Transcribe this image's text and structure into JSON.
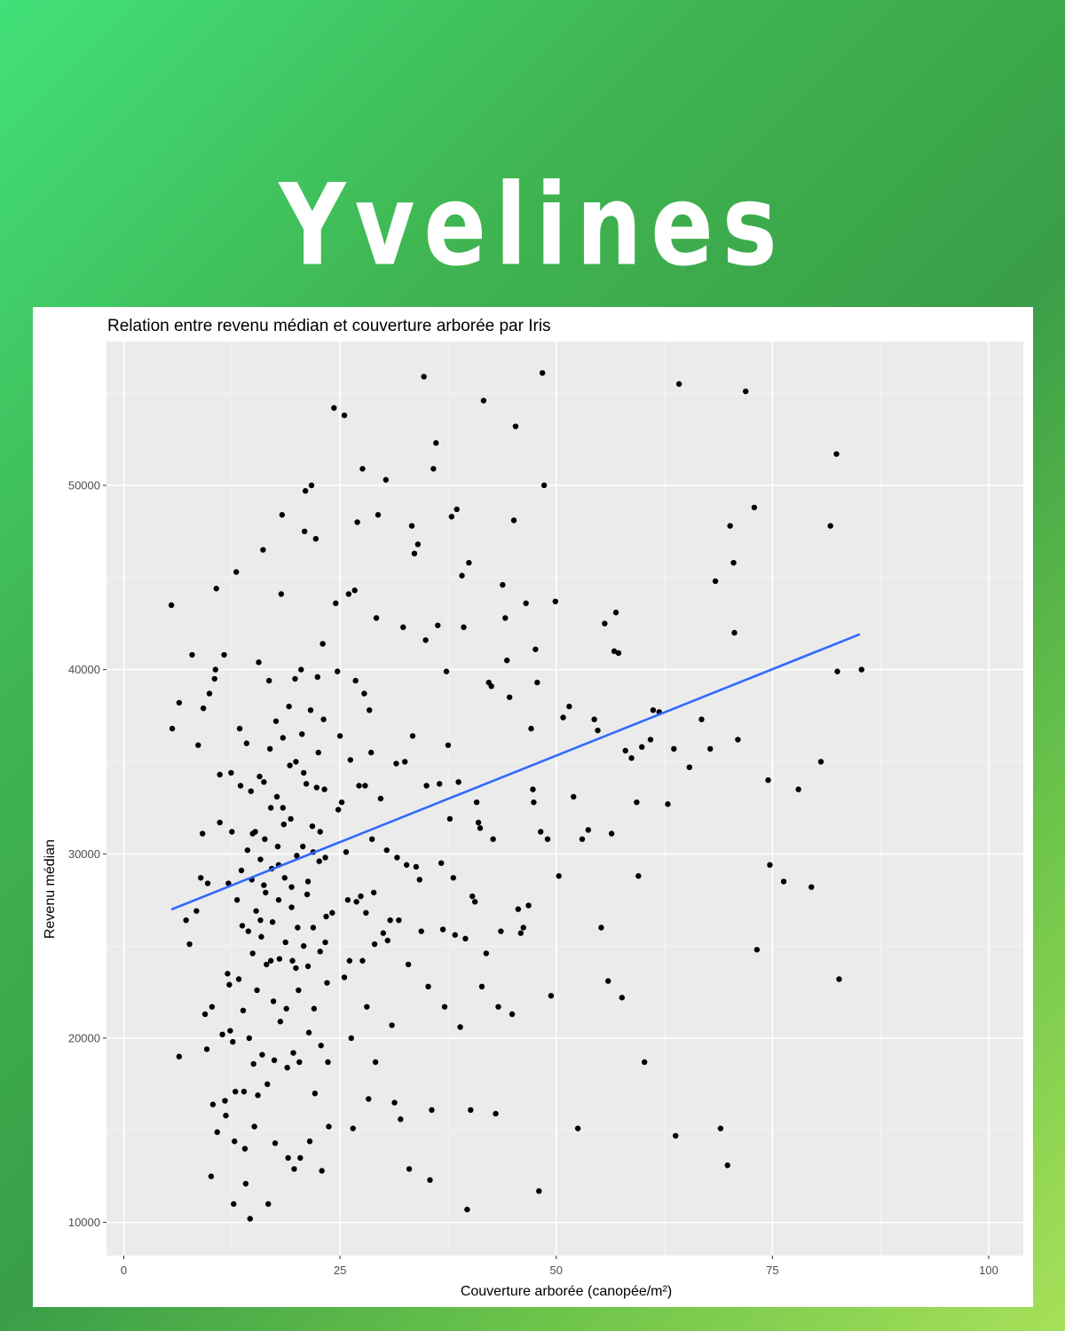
{
  "headline": "Yvelines",
  "chart_data": {
    "type": "scatter",
    "title": "Relation entre revenu médian et couverture arborée par Iris",
    "xlabel": "Couverture arborée (canopée/m²)",
    "ylabel": "Revenu médian",
    "xlim": [
      -2,
      104
    ],
    "ylim": [
      8200,
      57800
    ],
    "xticks": [
      0,
      25,
      50,
      75,
      100
    ],
    "yticks": [
      10000,
      20000,
      30000,
      40000,
      50000
    ],
    "grid": true,
    "panel_color": "#ebebeb",
    "point_color": "#000000",
    "trend_color": "#3366ff",
    "trend_line": {
      "x": [
        5.6,
        85
      ],
      "y": [
        27000,
        41900
      ]
    },
    "points": [
      [
        5.5,
        43500
      ],
      [
        5.6,
        36800
      ],
      [
        6.4,
        38200
      ],
      [
        7.2,
        26400
      ],
      [
        7.6,
        25100
      ],
      [
        6.4,
        19000
      ],
      [
        7.9,
        40800
      ],
      [
        8.4,
        26900
      ],
      [
        8.6,
        35900
      ],
      [
        8.9,
        28700
      ],
      [
        9.1,
        31100
      ],
      [
        9.2,
        37900
      ],
      [
        9.4,
        21300
      ],
      [
        9.6,
        19400
      ],
      [
        9.7,
        28400
      ],
      [
        9.9,
        38700
      ],
      [
        10.1,
        12500
      ],
      [
        10.2,
        21700
      ],
      [
        10.3,
        16400
      ],
      [
        10.5,
        39500
      ],
      [
        10.6,
        40000
      ],
      [
        10.7,
        44400
      ],
      [
        10.8,
        14900
      ],
      [
        11.1,
        34300
      ],
      [
        11.1,
        31700
      ],
      [
        11.4,
        20200
      ],
      [
        11.6,
        40800
      ],
      [
        11.7,
        16600
      ],
      [
        11.8,
        15800
      ],
      [
        12.0,
        23500
      ],
      [
        12.1,
        28400
      ],
      [
        12.2,
        22900
      ],
      [
        12.3,
        20400
      ],
      [
        12.4,
        34400
      ],
      [
        12.5,
        31200
      ],
      [
        12.6,
        19800
      ],
      [
        12.7,
        11000
      ],
      [
        12.8,
        14400
      ],
      [
        12.9,
        17100
      ],
      [
        13.0,
        45300
      ],
      [
        13.1,
        27500
      ],
      [
        13.3,
        23200
      ],
      [
        13.4,
        36800
      ],
      [
        13.5,
        33700
      ],
      [
        13.6,
        29100
      ],
      [
        13.7,
        26100
      ],
      [
        13.8,
        21500
      ],
      [
        13.9,
        17100
      ],
      [
        14.0,
        14000
      ],
      [
        14.1,
        12100
      ],
      [
        14.2,
        36000
      ],
      [
        14.3,
        30200
      ],
      [
        14.4,
        25800
      ],
      [
        14.5,
        20000
      ],
      [
        14.6,
        10200
      ],
      [
        14.7,
        33400
      ],
      [
        14.8,
        28600
      ],
      [
        14.9,
        24600
      ],
      [
        15.0,
        18600
      ],
      [
        15.1,
        15200
      ],
      [
        15.2,
        31200
      ],
      [
        15.3,
        26900
      ],
      [
        15.4,
        22600
      ],
      [
        15.5,
        16900
      ],
      [
        15.6,
        40400
      ],
      [
        15.7,
        34200
      ],
      [
        15.8,
        29700
      ],
      [
        15.9,
        25500
      ],
      [
        16.0,
        19100
      ],
      [
        16.1,
        46500
      ],
      [
        16.2,
        33900
      ],
      [
        16.3,
        30800
      ],
      [
        16.4,
        27900
      ],
      [
        16.5,
        24000
      ],
      [
        16.6,
        17500
      ],
      [
        16.7,
        11000
      ],
      [
        16.8,
        39400
      ],
      [
        16.9,
        35700
      ],
      [
        17.0,
        32500
      ],
      [
        17.1,
        29200
      ],
      [
        17.2,
        26300
      ],
      [
        17.3,
        22000
      ],
      [
        17.4,
        18800
      ],
      [
        17.5,
        14300
      ],
      [
        17.6,
        37200
      ],
      [
        17.7,
        33100
      ],
      [
        17.8,
        30400
      ],
      [
        17.9,
        27500
      ],
      [
        18.0,
        24300
      ],
      [
        18.1,
        20900
      ],
      [
        18.2,
        44100
      ],
      [
        18.3,
        48400
      ],
      [
        18.4,
        36300
      ],
      [
        18.5,
        31600
      ],
      [
        18.6,
        28700
      ],
      [
        18.7,
        25200
      ],
      [
        18.8,
        21600
      ],
      [
        18.9,
        18400
      ],
      [
        19.0,
        13500
      ],
      [
        19.1,
        38000
      ],
      [
        19.2,
        34800
      ],
      [
        19.3,
        31900
      ],
      [
        19.4,
        28200
      ],
      [
        19.5,
        24200
      ],
      [
        19.6,
        19200
      ],
      [
        19.7,
        12900
      ],
      [
        19.8,
        39500
      ],
      [
        19.9,
        35000
      ],
      [
        20.0,
        29900
      ],
      [
        20.1,
        26000
      ],
      [
        20.2,
        22600
      ],
      [
        20.3,
        18700
      ],
      [
        20.4,
        13500
      ],
      [
        20.5,
        40000
      ],
      [
        20.6,
        36500
      ],
      [
        20.7,
        30400
      ],
      [
        20.8,
        25000
      ],
      [
        20.9,
        47500
      ],
      [
        21.0,
        49700
      ],
      [
        21.1,
        33800
      ],
      [
        21.2,
        27800
      ],
      [
        21.3,
        23900
      ],
      [
        21.4,
        20300
      ],
      [
        21.5,
        14400
      ],
      [
        21.6,
        37800
      ],
      [
        21.7,
        50000
      ],
      [
        21.8,
        31500
      ],
      [
        21.9,
        26000
      ],
      [
        22.0,
        21600
      ],
      [
        22.1,
        17000
      ],
      [
        22.2,
        47100
      ],
      [
        22.3,
        33600
      ],
      [
        22.4,
        39600
      ],
      [
        22.5,
        35500
      ],
      [
        22.6,
        29600
      ],
      [
        22.7,
        24700
      ],
      [
        22.8,
        19600
      ],
      [
        22.9,
        12800
      ],
      [
        23.0,
        41400
      ],
      [
        23.1,
        37300
      ],
      [
        23.2,
        33500
      ],
      [
        23.3,
        29800
      ],
      [
        23.4,
        26600
      ],
      [
        23.5,
        23000
      ],
      [
        23.6,
        18700
      ],
      [
        23.7,
        15200
      ],
      [
        24.3,
        54200
      ],
      [
        24.5,
        43600
      ],
      [
        24.7,
        39900
      ],
      [
        25.0,
        36400
      ],
      [
        25.2,
        32800
      ],
      [
        25.5,
        53800
      ],
      [
        25.7,
        30100
      ],
      [
        25.9,
        27500
      ],
      [
        26.0,
        44100
      ],
      [
        26.1,
        24200
      ],
      [
        26.3,
        20000
      ],
      [
        26.5,
        15100
      ],
      [
        26.7,
        44300
      ],
      [
        26.8,
        39400
      ],
      [
        27.0,
        48000
      ],
      [
        27.2,
        33700
      ],
      [
        27.4,
        27700
      ],
      [
        27.6,
        50900
      ],
      [
        27.8,
        38700
      ],
      [
        27.9,
        33700
      ],
      [
        28.0,
        26800
      ],
      [
        28.1,
        21700
      ],
      [
        28.3,
        16700
      ],
      [
        28.4,
        37800
      ],
      [
        28.6,
        35500
      ],
      [
        28.7,
        30800
      ],
      [
        28.9,
        27900
      ],
      [
        29.0,
        25100
      ],
      [
        29.1,
        18700
      ],
      [
        29.2,
        42800
      ],
      [
        29.4,
        48400
      ],
      [
        29.7,
        33000
      ],
      [
        30.0,
        25700
      ],
      [
        30.3,
        50300
      ],
      [
        30.4,
        30200
      ],
      [
        30.5,
        25300
      ],
      [
        30.8,
        26400
      ],
      [
        31.0,
        20700
      ],
      [
        31.3,
        16500
      ],
      [
        31.5,
        34900
      ],
      [
        31.6,
        29800
      ],
      [
        31.8,
        26400
      ],
      [
        32.0,
        15600
      ],
      [
        32.3,
        42300
      ],
      [
        32.5,
        35000
      ],
      [
        32.7,
        29400
      ],
      [
        32.9,
        24000
      ],
      [
        33.0,
        12900
      ],
      [
        33.3,
        47800
      ],
      [
        33.4,
        36400
      ],
      [
        33.6,
        46300
      ],
      [
        33.8,
        29300
      ],
      [
        34.0,
        46800
      ],
      [
        34.2,
        28600
      ],
      [
        34.4,
        25800
      ],
      [
        34.7,
        55900
      ],
      [
        34.9,
        41600
      ],
      [
        35.0,
        33700
      ],
      [
        35.2,
        22800
      ],
      [
        35.4,
        12300
      ],
      [
        35.6,
        16100
      ],
      [
        35.8,
        50900
      ],
      [
        36.1,
        52300
      ],
      [
        36.3,
        42400
      ],
      [
        36.5,
        33800
      ],
      [
        36.7,
        29500
      ],
      [
        36.9,
        25900
      ],
      [
        37.1,
        21700
      ],
      [
        37.3,
        39900
      ],
      [
        37.5,
        35900
      ],
      [
        37.7,
        31900
      ],
      [
        37.9,
        48300
      ],
      [
        38.1,
        28700
      ],
      [
        38.3,
        25600
      ],
      [
        38.5,
        48700
      ],
      [
        38.7,
        33900
      ],
      [
        38.9,
        20600
      ],
      [
        39.1,
        45100
      ],
      [
        39.3,
        42300
      ],
      [
        39.5,
        25400
      ],
      [
        39.7,
        10700
      ],
      [
        39.9,
        45800
      ],
      [
        40.1,
        16100
      ],
      [
        40.3,
        27700
      ],
      [
        40.6,
        27400
      ],
      [
        40.8,
        32800
      ],
      [
        41.0,
        31700
      ],
      [
        41.2,
        31400
      ],
      [
        41.4,
        22800
      ],
      [
        41.6,
        54600
      ],
      [
        41.9,
        24600
      ],
      [
        42.2,
        39300
      ],
      [
        42.5,
        39100
      ],
      [
        42.7,
        30800
      ],
      [
        43.0,
        15900
      ],
      [
        43.3,
        21700
      ],
      [
        43.6,
        25800
      ],
      [
        43.8,
        44600
      ],
      [
        44.1,
        42800
      ],
      [
        44.3,
        40500
      ],
      [
        44.6,
        38500
      ],
      [
        44.9,
        21300
      ],
      [
        45.1,
        48100
      ],
      [
        45.3,
        53200
      ],
      [
        45.6,
        27000
      ],
      [
        45.9,
        25700
      ],
      [
        46.2,
        26000
      ],
      [
        46.5,
        43600
      ],
      [
        46.8,
        27200
      ],
      [
        47.1,
        36800
      ],
      [
        47.3,
        33500
      ],
      [
        47.4,
        32800
      ],
      [
        47.6,
        41100
      ],
      [
        47.8,
        39300
      ],
      [
        48.0,
        11700
      ],
      [
        48.2,
        31200
      ],
      [
        48.4,
        56100
      ],
      [
        48.6,
        50000
      ],
      [
        49.0,
        30800
      ],
      [
        49.4,
        22300
      ],
      [
        49.9,
        43700
      ],
      [
        50.3,
        28800
      ],
      [
        50.8,
        37400
      ],
      [
        51.5,
        38000
      ],
      [
        52.0,
        33100
      ],
      [
        52.5,
        15100
      ],
      [
        53.0,
        30800
      ],
      [
        53.7,
        31300
      ],
      [
        54.4,
        37300
      ],
      [
        54.8,
        36700
      ],
      [
        55.2,
        26000
      ],
      [
        55.6,
        42500
      ],
      [
        56.0,
        23100
      ],
      [
        56.4,
        31100
      ],
      [
        56.7,
        41000
      ],
      [
        56.9,
        43100
      ],
      [
        57.2,
        40900
      ],
      [
        57.6,
        22200
      ],
      [
        58.0,
        35600
      ],
      [
        58.7,
        35200
      ],
      [
        59.3,
        32800
      ],
      [
        59.5,
        28800
      ],
      [
        59.9,
        35800
      ],
      [
        60.2,
        18700
      ],
      [
        60.9,
        36200
      ],
      [
        61.2,
        37800
      ],
      [
        61.9,
        37700
      ],
      [
        62.9,
        32700
      ],
      [
        63.6,
        35700
      ],
      [
        63.8,
        14700
      ],
      [
        64.2,
        55500
      ],
      [
        65.4,
        34700
      ],
      [
        66.8,
        37300
      ],
      [
        67.8,
        35700
      ],
      [
        68.4,
        44800
      ],
      [
        69.0,
        15100
      ],
      [
        69.8,
        13100
      ],
      [
        70.1,
        47800
      ],
      [
        70.5,
        45800
      ],
      [
        70.6,
        42000
      ],
      [
        71.0,
        36200
      ],
      [
        71.9,
        55100
      ],
      [
        72.9,
        48800
      ],
      [
        73.2,
        24800
      ],
      [
        74.5,
        34000
      ],
      [
        74.7,
        29400
      ],
      [
        76.3,
        28500
      ],
      [
        78.0,
        33500
      ],
      [
        79.5,
        28200
      ],
      [
        80.6,
        35000
      ],
      [
        81.7,
        47800
      ],
      [
        82.4,
        51700
      ],
      [
        82.5,
        39900
      ],
      [
        82.7,
        23200
      ],
      [
        85.3,
        40000
      ],
      [
        16.2,
        28300
      ],
      [
        17.0,
        24200
      ],
      [
        18.4,
        32500
      ],
      [
        19.9,
        23800
      ],
      [
        21.3,
        28500
      ],
      [
        22.7,
        31200
      ],
      [
        24.1,
        26800
      ],
      [
        25.5,
        23300
      ],
      [
        26.9,
        27400
      ],
      [
        14.9,
        31100
      ],
      [
        15.8,
        26400
      ],
      [
        17.9,
        29400
      ],
      [
        19.4,
        27100
      ],
      [
        20.8,
        34400
      ],
      [
        21.9,
        30100
      ],
      [
        23.3,
        25200
      ],
      [
        24.8,
        32400
      ],
      [
        26.2,
        35100
      ],
      [
        27.6,
        24200
      ]
    ]
  }
}
